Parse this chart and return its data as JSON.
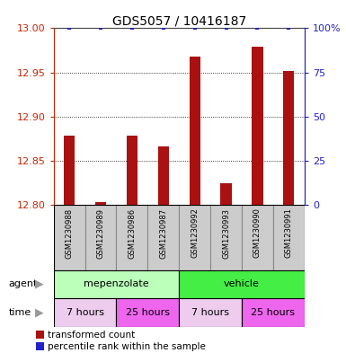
{
  "title": "GDS5057 / 10416187",
  "samples": [
    "GSM1230988",
    "GSM1230989",
    "GSM1230986",
    "GSM1230987",
    "GSM1230992",
    "GSM1230993",
    "GSM1230990",
    "GSM1230991"
  ],
  "bar_values": [
    12.878,
    12.803,
    12.878,
    12.866,
    12.968,
    12.824,
    12.979,
    12.952
  ],
  "percentile_values": [
    100,
    100,
    100,
    100,
    100,
    100,
    100,
    100
  ],
  "ylim_left": [
    12.8,
    13.0
  ],
  "ylim_right": [
    0,
    100
  ],
  "yticks_left": [
    12.8,
    12.85,
    12.9,
    12.95,
    13.0
  ],
  "yticks_right": [
    0,
    25,
    50,
    75,
    100
  ],
  "bar_color": "#AA1111",
  "percentile_color": "#2222CC",
  "agent_groups": [
    {
      "label": "mepenzolate",
      "start": 0,
      "end": 4,
      "color": "#BBFFBB"
    },
    {
      "label": "vehicle",
      "start": 4,
      "end": 8,
      "color": "#44EE44"
    }
  ],
  "time_groups": [
    {
      "label": "7 hours",
      "start": 0,
      "end": 2,
      "color": "#EECCEE"
    },
    {
      "label": "25 hours",
      "start": 2,
      "end": 4,
      "color": "#EE66EE"
    },
    {
      "label": "7 hours",
      "start": 4,
      "end": 6,
      "color": "#EECCEE"
    },
    {
      "label": "25 hours",
      "start": 6,
      "end": 8,
      "color": "#EE66EE"
    }
  ],
  "legend_items": [
    {
      "color": "#AA1111",
      "label": "transformed count"
    },
    {
      "color": "#2222CC",
      "label": "percentile rank within the sample"
    }
  ],
  "tick_color_left": "#CC2200",
  "tick_color_right": "#2222CC",
  "sample_box_color": "#CCCCCC",
  "sample_box_edge": "#888888",
  "arrow_color": "#999999",
  "border_color": "#444444"
}
